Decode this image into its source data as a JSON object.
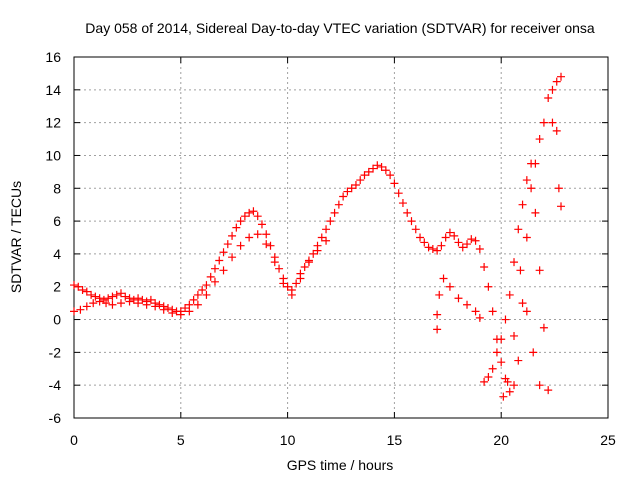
{
  "chart_data": {
    "type": "scatter",
    "title": "Day 058 of 2014, Sidereal Day-to-day VTEC variation (SDTVAR) for receiver onsa",
    "xlabel": "GPS time / hours",
    "ylabel": "SDTVAR / TECUs",
    "xlim": [
      0,
      25
    ],
    "ylim": [
      -6,
      16
    ],
    "xticks": [
      0,
      5,
      10,
      15,
      20,
      25
    ],
    "yticks": [
      -6,
      -4,
      -2,
      0,
      2,
      4,
      6,
      8,
      10,
      12,
      14,
      16
    ],
    "grid": true,
    "marker": "+",
    "marker_color": "#ff0000",
    "series": [
      {
        "name": "onsa",
        "points": [
          [
            0.0,
            2.1
          ],
          [
            0.2,
            2.0
          ],
          [
            0.4,
            1.8
          ],
          [
            0.6,
            1.7
          ],
          [
            0.8,
            1.5
          ],
          [
            1.0,
            1.4
          ],
          [
            1.2,
            1.3
          ],
          [
            1.4,
            1.2
          ],
          [
            1.6,
            1.3
          ],
          [
            1.8,
            1.4
          ],
          [
            2.0,
            1.5
          ],
          [
            2.2,
            1.6
          ],
          [
            2.4,
            1.4
          ],
          [
            2.6,
            1.3
          ],
          [
            2.8,
            1.2
          ],
          [
            3.0,
            1.3
          ],
          [
            3.2,
            1.2
          ],
          [
            3.4,
            1.1
          ],
          [
            3.6,
            1.2
          ],
          [
            3.8,
            1.0
          ],
          [
            4.0,
            0.9
          ],
          [
            4.2,
            0.8
          ],
          [
            4.4,
            0.7
          ],
          [
            4.6,
            0.6
          ],
          [
            4.8,
            0.5
          ],
          [
            5.0,
            0.5
          ],
          [
            5.2,
            0.7
          ],
          [
            5.4,
            0.9
          ],
          [
            5.6,
            1.2
          ],
          [
            5.8,
            1.5
          ],
          [
            6.0,
            1.8
          ],
          [
            6.2,
            2.1
          ],
          [
            6.4,
            2.6
          ],
          [
            6.6,
            3.1
          ],
          [
            6.8,
            3.6
          ],
          [
            7.0,
            4.1
          ],
          [
            7.2,
            4.6
          ],
          [
            7.4,
            5.1
          ],
          [
            7.6,
            5.6
          ],
          [
            7.8,
            6.0
          ],
          [
            8.0,
            6.3
          ],
          [
            8.2,
            6.5
          ],
          [
            8.4,
            6.6
          ],
          [
            8.6,
            6.3
          ],
          [
            8.8,
            5.8
          ],
          [
            9.0,
            5.2
          ],
          [
            9.2,
            4.5
          ],
          [
            9.4,
            3.8
          ],
          [
            9.6,
            3.1
          ],
          [
            9.8,
            2.5
          ],
          [
            10.0,
            2.0
          ],
          [
            10.2,
            1.8
          ],
          [
            10.4,
            2.2
          ],
          [
            10.6,
            2.8
          ],
          [
            10.8,
            3.2
          ],
          [
            11.0,
            3.6
          ],
          [
            11.2,
            4.0
          ],
          [
            11.4,
            4.5
          ],
          [
            11.6,
            5.0
          ],
          [
            11.8,
            5.5
          ],
          [
            12.0,
            6.0
          ],
          [
            12.2,
            6.5
          ],
          [
            12.4,
            7.0
          ],
          [
            12.6,
            7.5
          ],
          [
            12.8,
            7.8
          ],
          [
            13.0,
            8.0
          ],
          [
            13.2,
            8.2
          ],
          [
            13.4,
            8.5
          ],
          [
            13.6,
            8.8
          ],
          [
            13.8,
            9.0
          ],
          [
            14.0,
            9.2
          ],
          [
            14.2,
            9.4
          ],
          [
            14.4,
            9.3
          ],
          [
            14.6,
            9.1
          ],
          [
            14.8,
            8.8
          ],
          [
            15.0,
            8.3
          ],
          [
            15.2,
            7.7
          ],
          [
            15.4,
            7.1
          ],
          [
            15.6,
            6.5
          ],
          [
            15.8,
            6.0
          ],
          [
            16.0,
            5.5
          ],
          [
            16.2,
            5.0
          ],
          [
            16.4,
            4.7
          ],
          [
            16.6,
            4.4
          ],
          [
            16.8,
            4.3
          ],
          [
            17.0,
            4.2
          ],
          [
            17.2,
            4.5
          ],
          [
            17.4,
            5.0
          ],
          [
            17.6,
            5.3
          ],
          [
            17.8,
            5.1
          ],
          [
            18.0,
            4.7
          ],
          [
            18.2,
            4.4
          ],
          [
            18.4,
            4.6
          ],
          [
            18.6,
            4.9
          ],
          [
            18.8,
            4.8
          ],
          [
            19.0,
            4.3
          ],
          [
            19.2,
            3.2
          ],
          [
            19.4,
            2.0
          ],
          [
            19.6,
            0.5
          ],
          [
            19.8,
            -1.2
          ],
          [
            20.0,
            -2.6
          ],
          [
            20.2,
            -3.6
          ],
          [
            20.4,
            -4.4
          ],
          [
            20.6,
            -4.0
          ],
          [
            20.8,
            -2.5
          ],
          [
            21.0,
            1.0
          ],
          [
            21.2,
            5.0
          ],
          [
            21.4,
            8.0
          ],
          [
            21.6,
            9.5
          ],
          [
            21.8,
            11.0
          ],
          [
            22.0,
            12.0
          ],
          [
            22.2,
            13.5
          ],
          [
            22.4,
            14.0
          ],
          [
            22.6,
            14.5
          ],
          [
            22.8,
            14.8
          ],
          [
            0.0,
            0.5
          ],
          [
            0.3,
            0.6
          ],
          [
            0.6,
            0.8
          ],
          [
            0.9,
            1.0
          ],
          [
            1.2,
            1.1
          ],
          [
            1.5,
            1.0
          ],
          [
            1.8,
            0.9
          ],
          [
            2.2,
            1.0
          ],
          [
            2.6,
            1.1
          ],
          [
            3.0,
            1.0
          ],
          [
            3.4,
            0.9
          ],
          [
            3.8,
            0.8
          ],
          [
            4.2,
            0.6
          ],
          [
            4.6,
            0.4
          ],
          [
            5.0,
            0.3
          ],
          [
            5.4,
            0.5
          ],
          [
            5.8,
            0.9
          ],
          [
            6.2,
            1.5
          ],
          [
            6.6,
            2.3
          ],
          [
            7.0,
            3.0
          ],
          [
            7.4,
            3.8
          ],
          [
            7.8,
            4.5
          ],
          [
            8.2,
            5.0
          ],
          [
            8.6,
            5.2
          ],
          [
            9.0,
            4.6
          ],
          [
            9.4,
            3.5
          ],
          [
            9.8,
            2.2
          ],
          [
            10.2,
            1.5
          ],
          [
            10.6,
            2.5
          ],
          [
            11.0,
            3.5
          ],
          [
            11.4,
            4.2
          ],
          [
            11.8,
            4.8
          ],
          [
            17.0,
            0.3
          ],
          [
            17.0,
            -0.6
          ],
          [
            17.1,
            1.5
          ],
          [
            17.3,
            2.5
          ],
          [
            17.6,
            2.0
          ],
          [
            18.0,
            1.3
          ],
          [
            18.4,
            0.9
          ],
          [
            18.8,
            0.5
          ],
          [
            19.0,
            0.1
          ],
          [
            19.2,
            -3.8
          ],
          [
            19.4,
            -3.5
          ],
          [
            19.6,
            -3.0
          ],
          [
            19.8,
            -2.0
          ],
          [
            20.0,
            -1.2
          ],
          [
            20.2,
            0.0
          ],
          [
            20.4,
            1.5
          ],
          [
            20.6,
            3.5
          ],
          [
            20.8,
            5.5
          ],
          [
            21.0,
            7.0
          ],
          [
            21.2,
            8.5
          ],
          [
            21.4,
            9.5
          ],
          [
            21.6,
            6.5
          ],
          [
            21.8,
            3.0
          ],
          [
            22.0,
            -0.5
          ],
          [
            22.2,
            -4.3
          ],
          [
            21.8,
            -4.0
          ],
          [
            21.5,
            -2.0
          ],
          [
            21.2,
            0.5
          ],
          [
            20.9,
            3.0
          ],
          [
            20.6,
            -1.0
          ],
          [
            20.3,
            -3.8
          ],
          [
            20.1,
            -4.7
          ],
          [
            22.4,
            12.0
          ],
          [
            22.6,
            11.5
          ],
          [
            22.7,
            8.0
          ],
          [
            22.8,
            6.9
          ]
        ]
      }
    ]
  }
}
